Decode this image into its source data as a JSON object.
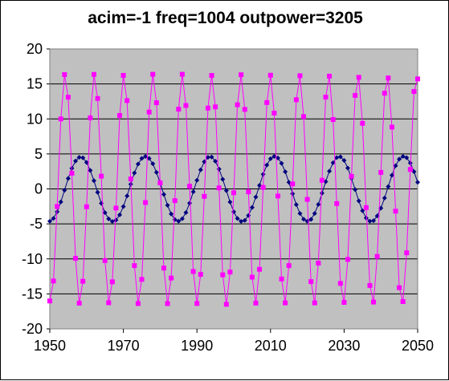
{
  "chart_data": {
    "type": "line",
    "title": "acim=-1  freq=1004  outpower=3205",
    "xlabel": "",
    "ylabel": "",
    "xlim": [
      1950,
      2050
    ],
    "ylim": [
      -20,
      20
    ],
    "x_ticks": [
      1950,
      1970,
      1990,
      2010,
      2030,
      2050
    ],
    "y_ticks": [
      20,
      15,
      10,
      5,
      0,
      -5,
      -10,
      -15,
      -20
    ],
    "grid": "horizontal",
    "plot_background": "#c0c0c0",
    "x_start": 1950,
    "x_step": 1,
    "series": [
      {
        "color": "#000080",
        "marker": "diamond",
        "values": [
          -4.63,
          -4.21,
          -3.26,
          -1.86,
          -0.2,
          1.49,
          2.94,
          3.98,
          4.52,
          4.44,
          3.78,
          2.63,
          1.17,
          -0.48,
          -2.06,
          -3.39,
          -4.28,
          -4.65,
          -4.45,
          -3.71,
          -2.52,
          -1.0,
          0.68,
          2.28,
          3.55,
          4.35,
          4.64,
          4.36,
          3.59,
          2.37,
          0.84,
          -0.79,
          -2.34,
          -3.58,
          -4.38,
          -4.62,
          -4.27,
          -3.38,
          -2.04,
          -0.42,
          1.23,
          2.72,
          3.88,
          4.52,
          4.56,
          3.96,
          2.84,
          1.38,
          -0.24,
          -1.87,
          -3.27,
          -4.23,
          -4.64,
          -4.5,
          -3.8,
          -2.65,
          -1.16,
          0.5,
          2.09,
          3.41,
          4.31,
          4.64,
          4.41,
          3.65,
          2.45,
          0.94,
          -0.69,
          -2.25,
          -3.51,
          -4.32,
          -4.63,
          -4.35,
          -3.51,
          -2.22,
          -0.62,
          1.03,
          2.54,
          3.74,
          4.47,
          4.59,
          4.07,
          2.98,
          1.52,
          -0.1,
          -1.72,
          -3.13,
          -4.15,
          -4.62,
          -4.54,
          -3.87,
          -2.75,
          -1.31,
          0.33,
          1.95,
          3.31,
          4.26,
          4.64,
          4.45,
          3.69,
          2.47,
          0.94
        ]
      },
      {
        "color": "#ff00ff",
        "marker": "square",
        "values": [
          -16.01,
          -13.16,
          -2.51,
          10.0,
          16.33,
          13.1,
          2.24,
          -9.93,
          -16.33,
          -13.2,
          -2.55,
          10.15,
          16.36,
          12.92,
          1.82,
          -10.24,
          -16.27,
          -13.28,
          -2.74,
          10.49,
          16.22,
          12.62,
          1.42,
          -10.96,
          -16.38,
          -12.93,
          -1.95,
          10.98,
          16.38,
          12.31,
          0.87,
          -11.31,
          -16.39,
          -12.74,
          -1.68,
          11.39,
          16.38,
          11.92,
          0.38,
          -11.8,
          -16.37,
          -12.22,
          -1.06,
          11.55,
          16.21,
          11.72,
          0.14,
          -12.28,
          -16.49,
          -11.88,
          -0.55,
          12.02,
          16.31,
          11.36,
          -0.42,
          -12.61,
          -16.32,
          -11.49,
          0.21,
          12.34,
          16.24,
          10.83,
          -1.02,
          -12.87,
          -16.29,
          -10.96,
          0.71,
          12.74,
          16.17,
          10.33,
          -1.5,
          -13.25,
          -16.29,
          -10.61,
          1.23,
          13.12,
          16.11,
          9.91,
          -2.1,
          -13.5,
          -16.22,
          -10.07,
          1.8,
          13.36,
          15.94,
          9.37,
          -2.67,
          -13.8,
          -16.17,
          -9.65,
          2.36,
          13.67,
          15.85,
          8.83,
          -3.18,
          -14.11,
          -16.1,
          -9.13,
          2.78,
          13.92,
          15.72
        ]
      }
    ]
  }
}
